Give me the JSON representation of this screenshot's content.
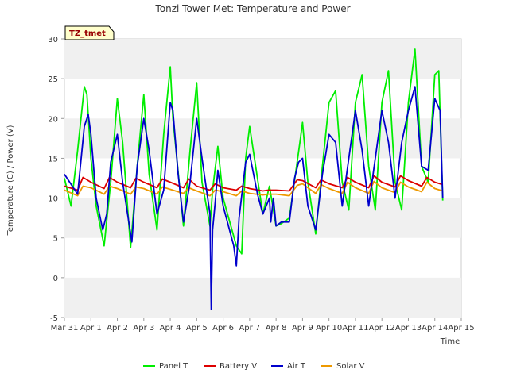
{
  "chart_data": {
    "type": "line",
    "title": "Tonzi Tower Met: Temperature and Power",
    "xlabel": "Time",
    "ylabel": "Temperature (C) / Power (V)",
    "badge": "TZ_tmet",
    "ylim": [
      -5,
      30
    ],
    "yticks": [
      -5,
      0,
      5,
      10,
      15,
      20,
      25,
      30
    ],
    "xlim": [
      0,
      15
    ],
    "xticks": [
      0,
      1,
      2,
      3,
      4,
      5,
      6,
      7,
      8,
      9,
      10,
      11,
      12,
      13,
      14,
      15
    ],
    "xtick_labels": [
      "Mar 31",
      "Apr 1",
      "Apr 2",
      "Apr 3",
      "Apr 4",
      "Apr 5",
      "Apr 6",
      "Apr 7",
      "Apr 8",
      "Apr 9",
      "Apr 10",
      "Apr 11",
      "Apr 12",
      "Apr 13",
      "Apr 14",
      "Apr 15"
    ],
    "grid": "horizontal bands",
    "legend_position": "bottom-center",
    "series": [
      {
        "name": "Panel T",
        "color": "#00ee00",
        "x": [
          0.0,
          0.25,
          0.5,
          0.75,
          0.85,
          1.0,
          1.2,
          1.5,
          1.75,
          2.0,
          2.2,
          2.5,
          2.75,
          3.0,
          3.2,
          3.5,
          3.75,
          4.0,
          4.1,
          4.5,
          4.75,
          5.0,
          5.2,
          5.5,
          5.6,
          5.8,
          6.0,
          6.5,
          6.7,
          6.85,
          7.0,
          7.5,
          7.75,
          8.0,
          8.2,
          8.5,
          8.9,
          9.0,
          9.2,
          9.5,
          9.75,
          10.0,
          10.25,
          10.5,
          10.75,
          11.0,
          11.25,
          11.5,
          11.75,
          12.0,
          12.25,
          12.5,
          12.75,
          13.0,
          13.25,
          13.5,
          13.75,
          14.0,
          14.15,
          14.3
        ],
        "values": [
          12.5,
          9.0,
          16.0,
          24.0,
          23.0,
          15.0,
          9.0,
          4.0,
          12.0,
          22.5,
          17.0,
          3.8,
          14.0,
          23.0,
          13.0,
          6.0,
          18.0,
          26.5,
          20.0,
          6.5,
          16.0,
          24.5,
          12.0,
          6.5,
          11.0,
          16.5,
          10.0,
          4.0,
          3.0,
          15.0,
          19.0,
          8.0,
          11.5,
          6.5,
          6.8,
          7.5,
          17.0,
          19.5,
          12.0,
          5.5,
          14.0,
          22.0,
          23.5,
          12.0,
          8.5,
          22.0,
          25.5,
          14.0,
          8.5,
          22.0,
          26.0,
          12.0,
          8.5,
          22.0,
          28.7,
          14.0,
          12.0,
          25.5,
          26.0,
          9.7
        ]
      },
      {
        "name": "Battery V",
        "color": "#dd0000",
        "x": [
          0.0,
          0.5,
          0.7,
          1.0,
          1.5,
          1.7,
          2.0,
          2.5,
          2.7,
          3.0,
          3.5,
          3.7,
          4.0,
          4.5,
          4.7,
          5.0,
          5.5,
          5.7,
          6.0,
          6.5,
          6.7,
          7.0,
          7.5,
          7.7,
          8.0,
          8.5,
          8.8,
          9.0,
          9.5,
          9.7,
          10.0,
          10.5,
          10.7,
          11.0,
          11.5,
          11.7,
          12.0,
          12.5,
          12.7,
          13.0,
          13.5,
          13.7,
          14.0,
          14.3
        ],
        "values": [
          11.5,
          11.0,
          12.6,
          12.0,
          11.2,
          12.6,
          12.0,
          11.3,
          12.5,
          12.0,
          11.3,
          12.4,
          12.0,
          11.3,
          12.4,
          11.5,
          11.0,
          11.8,
          11.3,
          11.0,
          11.5,
          11.2,
          10.9,
          11.0,
          11.0,
          10.9,
          12.3,
          12.2,
          11.3,
          12.3,
          11.8,
          11.3,
          12.6,
          12.0,
          11.3,
          12.8,
          12.0,
          11.4,
          12.8,
          12.2,
          11.5,
          12.6,
          12.0,
          11.7
        ]
      },
      {
        "name": "Air T",
        "color": "#0000cc",
        "x": [
          0.0,
          0.1,
          0.5,
          0.75,
          0.9,
          1.0,
          1.2,
          1.45,
          1.6,
          1.75,
          2.0,
          2.2,
          2.55,
          2.75,
          3.0,
          3.2,
          3.5,
          3.75,
          4.0,
          4.1,
          4.3,
          4.5,
          4.75,
          5.0,
          5.2,
          5.5,
          5.55,
          5.6,
          5.7,
          5.8,
          6.0,
          6.4,
          6.5,
          6.6,
          6.85,
          7.0,
          7.3,
          7.5,
          7.75,
          7.8,
          7.9,
          8.0,
          8.2,
          8.5,
          8.7,
          8.85,
          9.0,
          9.2,
          9.5,
          9.75,
          10.0,
          10.25,
          10.5,
          10.75,
          11.0,
          11.25,
          11.5,
          11.75,
          12.0,
          12.25,
          12.5,
          12.75,
          13.0,
          13.25,
          13.5,
          13.75,
          14.0,
          14.2,
          14.3
        ],
        "values": [
          13.0,
          12.5,
          10.5,
          19.0,
          20.5,
          18.0,
          10.0,
          6.0,
          8.0,
          14.5,
          18.0,
          12.0,
          4.5,
          14.0,
          20.0,
          16.0,
          8.0,
          11.0,
          22.0,
          21.0,
          13.0,
          7.0,
          12.0,
          20.0,
          15.0,
          8.0,
          -4.0,
          6.0,
          9.5,
          13.5,
          9.0,
          4.0,
          1.5,
          7.5,
          14.5,
          15.5,
          10.5,
          8.0,
          10.0,
          7.0,
          10.0,
          6.5,
          7.0,
          7.0,
          12.5,
          14.5,
          15.0,
          9.0,
          6.0,
          13.0,
          18.0,
          17.0,
          9.0,
          15.0,
          21.0,
          16.0,
          9.0,
          15.0,
          21.0,
          17.0,
          10.0,
          17.0,
          21.0,
          24.0,
          14.0,
          13.5,
          22.5,
          21.0,
          10.0
        ]
      },
      {
        "name": "Solar V",
        "color": "#ee9900",
        "x": [
          0.0,
          0.5,
          0.7,
          1.0,
          1.5,
          1.7,
          2.0,
          2.5,
          2.7,
          3.0,
          3.5,
          3.7,
          4.0,
          4.5,
          4.7,
          5.0,
          5.5,
          5.7,
          6.0,
          6.5,
          6.7,
          7.0,
          7.5,
          7.7,
          8.0,
          8.5,
          8.8,
          9.0,
          9.5,
          9.7,
          10.0,
          10.5,
          10.7,
          11.0,
          11.5,
          11.7,
          12.0,
          12.5,
          12.7,
          13.0,
          13.5,
          13.7,
          14.0,
          14.3
        ],
        "values": [
          11.0,
          10.3,
          11.5,
          11.3,
          10.5,
          11.5,
          11.2,
          10.5,
          11.4,
          11.2,
          10.5,
          11.4,
          11.1,
          10.6,
          11.3,
          10.9,
          10.3,
          11.0,
          10.8,
          10.3,
          10.9,
          10.6,
          10.4,
          10.5,
          10.5,
          10.3,
          11.6,
          11.8,
          10.6,
          11.7,
          11.2,
          10.6,
          12.0,
          11.3,
          10.6,
          12.1,
          11.3,
          10.7,
          12.0,
          11.4,
          10.8,
          12.0,
          11.2,
          10.9
        ]
      }
    ]
  }
}
